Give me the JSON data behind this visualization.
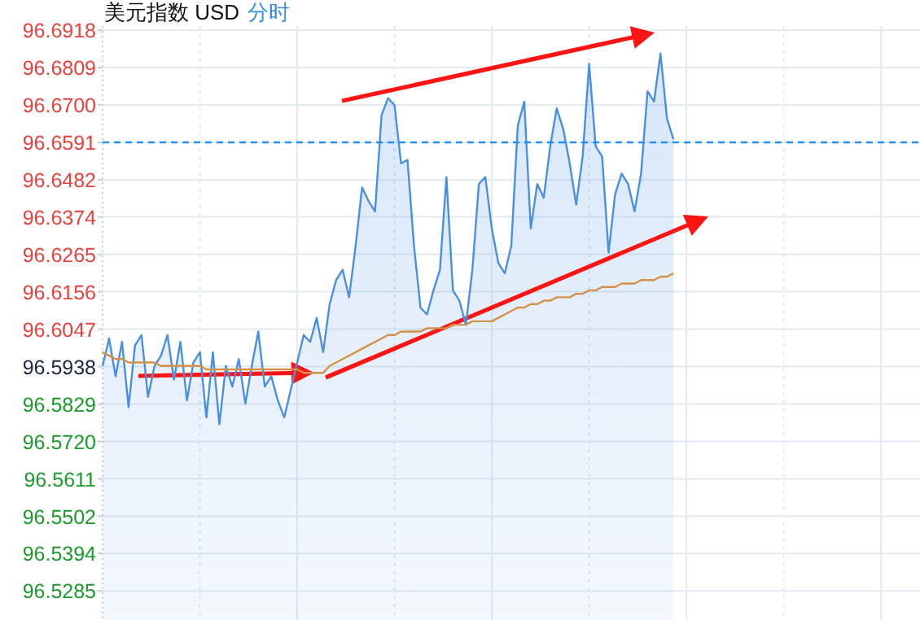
{
  "chart_data": {
    "type": "area",
    "title": "美元指数 USD",
    "subtitle": "分时",
    "categories": [
      null,
      null,
      null,
      null,
      null,
      null,
      null,
      null,
      null,
      null,
      null,
      null,
      null,
      null,
      null,
      null,
      null,
      null,
      null,
      null,
      null,
      null,
      null,
      null,
      null,
      null,
      null,
      null,
      null,
      null,
      null,
      null,
      null,
      null,
      null,
      null,
      null,
      null,
      null,
      null,
      null,
      null,
      null,
      null,
      null,
      null,
      null,
      null,
      null,
      null,
      null,
      null,
      null,
      null,
      null,
      null,
      null,
      null,
      null,
      null,
      null,
      null,
      null,
      null,
      null,
      null,
      null,
      null,
      null,
      null,
      null,
      null,
      null,
      null,
      null,
      null,
      null,
      null,
      null,
      null,
      null,
      null,
      null,
      null,
      null,
      null,
      null,
      null,
      null,
      null,
      null,
      null,
      null,
      null,
      null,
      null,
      null,
      null,
      null,
      null,
      null,
      null,
      null,
      null,
      null,
      null,
      null,
      null,
      null,
      null,
      null,
      null,
      null,
      null,
      null,
      null,
      null,
      null,
      null,
      null,
      null,
      null,
      null,
      null,
      null,
      null
    ],
    "series": [
      {
        "color": "#4a90e2",
        "values": [
          96.594,
          96.602,
          96.591,
          96.601,
          96.582,
          96.6,
          96.603,
          96.585,
          96.594,
          96.597,
          96.603,
          96.59,
          96.601,
          96.584,
          96.595,
          96.598,
          96.579,
          96.598,
          96.577,
          96.594,
          96.588,
          96.596,
          96.583,
          96.594,
          96.604,
          96.588,
          96.591,
          96.584,
          96.579,
          96.587,
          96.595,
          96.603,
          96.601,
          96.608,
          96.598,
          96.612,
          96.619,
          96.622,
          96.614,
          96.629,
          96.646,
          96.642,
          96.639,
          96.667,
          96.672,
          96.67,
          96.653,
          96.654,
          96.629,
          96.611,
          96.609,
          96.616,
          96.622,
          96.649,
          96.616,
          96.613,
          96.606,
          96.622,
          96.647,
          96.649,
          96.634,
          96.624,
          96.621,
          96.629,
          96.664,
          96.671,
          96.634,
          96.647,
          96.643,
          96.658,
          96.669,
          96.663,
          96.653,
          96.641,
          96.655,
          96.682,
          96.658,
          96.655,
          96.627,
          96.644,
          96.65,
          96.647,
          96.639,
          96.65,
          96.674,
          96.671,
          96.685,
          96.666,
          96.66,
          null,
          null,
          null,
          null,
          null,
          null,
          null,
          null,
          null,
          null,
          null,
          null,
          null,
          null,
          null,
          null,
          null,
          null,
          null,
          null,
          null,
          null,
          null,
          null,
          null,
          null,
          null,
          null,
          null,
          null,
          null,
          null,
          null,
          null,
          null,
          null,
          null
        ]
      },
      {
        "type": "line",
        "color": "#d4914a",
        "values": [
          96.598,
          96.597,
          96.596,
          96.596,
          96.595,
          96.595,
          96.595,
          96.595,
          96.595,
          96.594,
          96.594,
          96.594,
          96.594,
          96.594,
          96.594,
          96.594,
          96.593,
          96.593,
          96.593,
          96.593,
          96.593,
          96.593,
          96.593,
          96.593,
          96.593,
          96.593,
          96.593,
          96.593,
          96.593,
          96.593,
          96.593,
          96.592,
          96.592,
          96.592,
          96.592,
          96.594,
          96.595,
          96.596,
          96.597,
          96.598,
          96.599,
          96.6,
          96.601,
          96.602,
          96.603,
          96.603,
          96.604,
          96.604,
          96.604,
          96.604,
          96.605,
          96.605,
          96.605,
          96.605,
          96.606,
          96.606,
          96.606,
          96.607,
          96.607,
          96.607,
          96.607,
          96.608,
          96.609,
          96.61,
          96.611,
          96.611,
          96.612,
          96.612,
          96.613,
          96.613,
          96.614,
          96.614,
          96.614,
          96.615,
          96.615,
          96.616,
          96.616,
          96.617,
          96.617,
          96.617,
          96.618,
          96.618,
          96.618,
          96.619,
          96.619,
          96.619,
          96.62,
          96.62,
          96.621,
          null,
          null,
          null,
          null,
          null,
          null,
          null,
          null,
          null,
          null,
          null,
          null,
          null,
          null,
          null,
          null,
          null,
          null,
          null,
          null,
          null,
          null,
          null,
          null,
          null,
          null,
          null,
          null,
          null,
          null,
          null,
          null,
          null,
          null,
          null,
          null,
          null
        ]
      }
    ],
    "ylim": [
      96.52,
      96.693
    ],
    "yticks": [
      96.6918,
      96.6809,
      {
        "value": 96.67,
        "label": "96.6700"
      },
      96.6591,
      96.6482,
      96.6374,
      96.6265,
      96.6156,
      96.6047,
      96.5938,
      96.5829,
      {
        "value": 96.572,
        "label": "96.5720"
      },
      96.5611,
      96.5502,
      96.5394,
      96.5285
    ],
    "ref_lines": [
      {
        "axis": "y",
        "value": 96.6591,
        "color": "#1e90ff",
        "line_style": "dashed"
      }
    ],
    "grid": true,
    "tick_labels": "y",
    "line_style": "solid"
  }
}
